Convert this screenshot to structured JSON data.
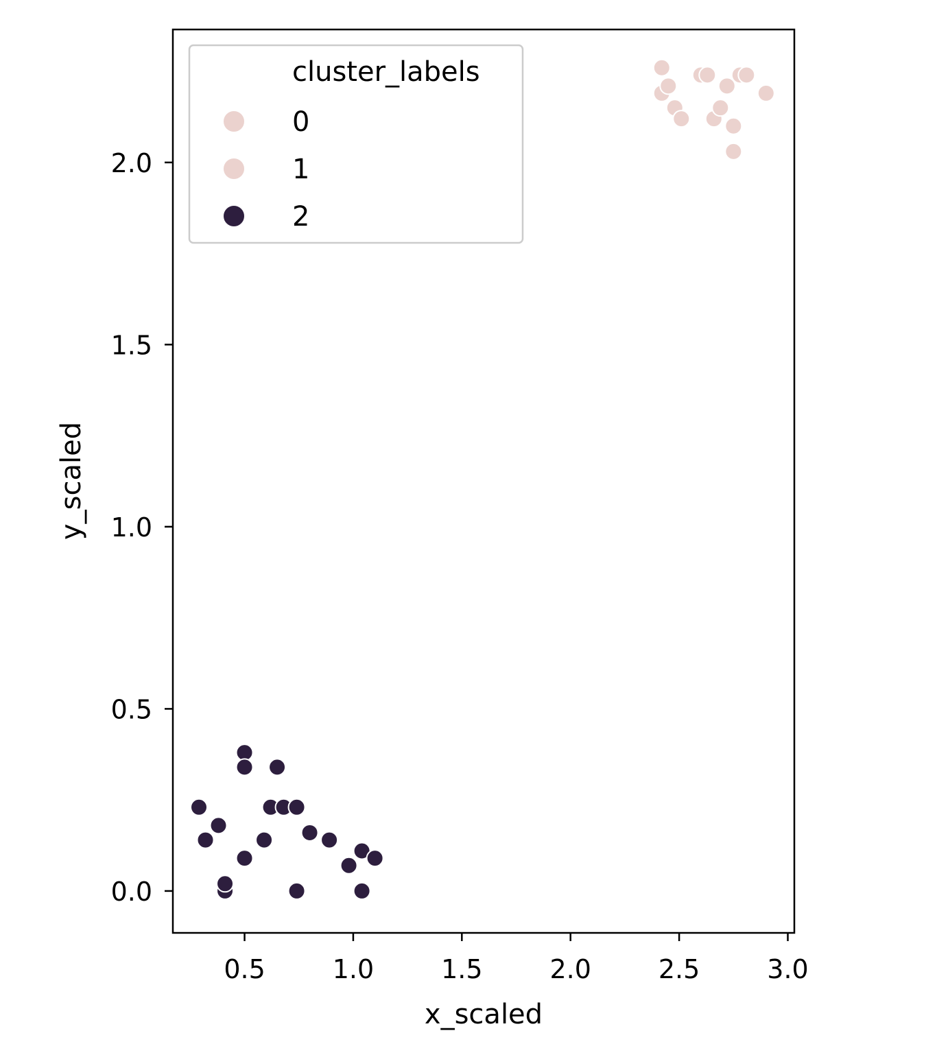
{
  "chart_data": {
    "type": "scatter",
    "title": "",
    "xlabel": "x_scaled",
    "ylabel": "y_scaled",
    "xlim": [
      0.17,
      3.03
    ],
    "ylim": [
      -0.115,
      2.365
    ],
    "xticks": [
      0.5,
      1.0,
      1.5,
      2.0,
      2.5,
      3.0
    ],
    "xtick_labels": [
      "0.5",
      "1.0",
      "1.5",
      "2.0",
      "2.5",
      "3.0"
    ],
    "yticks": [
      0.0,
      0.5,
      1.0,
      1.5,
      2.0
    ],
    "ytick_labels": [
      "0.0",
      "0.5",
      "1.0",
      "1.5",
      "2.0"
    ],
    "grid": false,
    "legend": {
      "title": "cluster_labels",
      "placement": "upper left",
      "entries": [
        {
          "label": "0",
          "color": "#ebd2ce"
        },
        {
          "label": "1",
          "color": "#ebd2ce"
        },
        {
          "label": "2",
          "color": "#2d1e3e"
        }
      ]
    },
    "series": [
      {
        "name": "0",
        "color": "#ebd2ce",
        "points": []
      },
      {
        "name": "1",
        "color": "#ebd2ce",
        "points": [
          [
            2.42,
            2.26
          ],
          [
            2.42,
            2.19
          ],
          [
            2.45,
            2.21
          ],
          [
            2.48,
            2.15
          ],
          [
            2.51,
            2.12
          ],
          [
            2.6,
            2.24
          ],
          [
            2.63,
            2.24
          ],
          [
            2.66,
            2.12
          ],
          [
            2.69,
            2.15
          ],
          [
            2.72,
            2.21
          ],
          [
            2.75,
            2.1
          ],
          [
            2.75,
            2.03
          ],
          [
            2.78,
            2.24
          ],
          [
            2.81,
            2.24
          ],
          [
            2.9,
            2.19
          ]
        ]
      },
      {
        "name": "2",
        "color": "#2d1e3e",
        "points": [
          [
            0.29,
            0.23
          ],
          [
            0.32,
            0.14
          ],
          [
            0.38,
            0.18
          ],
          [
            0.41,
            0.0
          ],
          [
            0.41,
            0.02
          ],
          [
            0.5,
            0.38
          ],
          [
            0.5,
            0.34
          ],
          [
            0.5,
            0.09
          ],
          [
            0.59,
            0.14
          ],
          [
            0.62,
            0.23
          ],
          [
            0.65,
            0.34
          ],
          [
            0.68,
            0.23
          ],
          [
            0.74,
            0.23
          ],
          [
            0.74,
            0.0
          ],
          [
            0.8,
            0.16
          ],
          [
            0.89,
            0.14
          ],
          [
            0.98,
            0.07
          ],
          [
            1.04,
            0.11
          ],
          [
            1.04,
            0.0
          ],
          [
            1.1,
            0.09
          ]
        ]
      }
    ]
  }
}
